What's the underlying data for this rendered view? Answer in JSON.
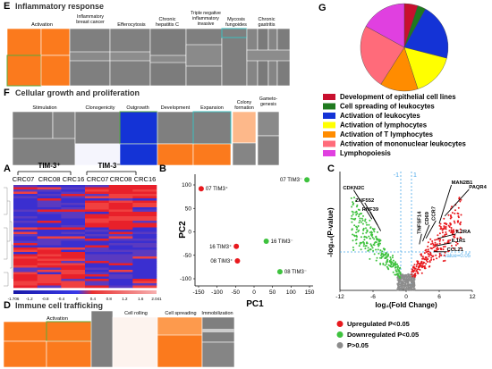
{
  "panels": {
    "E": {
      "letter": "E",
      "title": "Inflammatory response",
      "headers": [
        "Activation",
        "Inflammatory breast cancer",
        "Efferocytosis",
        "Chronic hepatitis C",
        "Triple negative inflammatory invasive",
        "Mycosis fungoides",
        "Chronic gastritis"
      ]
    },
    "F": {
      "letter": "F",
      "title": "Cellular growth and proliferation",
      "headers": [
        "Stimulation",
        "Clonogenicity",
        "Outgrowth",
        "Development",
        "Expansion",
        "Colony formation",
        "Gameto- genesis"
      ]
    },
    "A": {
      "letter": "A",
      "group_labels": [
        "TIM-3⁺",
        "TIM-3⁻"
      ],
      "column_labels": [
        "CRC07",
        "CRC08",
        "CRC16",
        "CRC07",
        "CRC08",
        "CRC16"
      ],
      "colorbar_ticks": [
        "-1.706",
        "-1.2",
        "-0.8",
        "-0.4",
        "0",
        "0.4",
        "0.8",
        "1.2",
        "1.6",
        "2.041"
      ]
    },
    "B": {
      "letter": "B",
      "xlabel": "PC1",
      "ylabel": "PC2"
    },
    "C": {
      "letter": "C",
      "xlabel": "log₂(Fold Change)",
      "ylabel": "-log₁₀(P-value)",
      "threshold_label": "P-value=0.05",
      "vline_labels": [
        "-1",
        "1"
      ],
      "legend": [
        {
          "label": "Upregulated P<0.05",
          "color": "#e8191e"
        },
        {
          "label": "Downregulated P<0.05",
          "color": "#3ec23e"
        },
        {
          "label": "P>0.05",
          "color": "#8c8c8c"
        }
      ]
    },
    "D": {
      "letter": "D",
      "title": "Immune cell trafficking",
      "headers": [
        "Activation",
        "Cell rolling",
        "Cell spreading",
        "Immobilization"
      ]
    },
    "G": {
      "letter": "G"
    }
  },
  "legend_G": [
    {
      "label": "Development of epithelial cell lines",
      "color": "#c8102e"
    },
    {
      "label": "Cell spreading of leukocytes",
      "color": "#1f7a1f"
    },
    {
      "label": "Activation of leukocytes",
      "color": "#1433d6"
    },
    {
      "label": "Activation of lymphocytes",
      "color": "#ffff00"
    },
    {
      "label": "Activation of T lymphocytes",
      "color": "#ff8c00"
    },
    {
      "label": "Activation of mononuclear leukocytes",
      "color": "#ff6b7a"
    },
    {
      "label": "Lymphopoiesis",
      "color": "#e040e0"
    }
  ],
  "chart_data": [
    {
      "type": "scatter",
      "panel": "B",
      "xlabel": "PC1",
      "ylabel": "PC2",
      "xlim": [
        -150,
        150
      ],
      "ylim": [
        -100,
        100
      ],
      "xticks": [
        "-150",
        "-100",
        "-50",
        "0",
        "50",
        "100",
        "150"
      ],
      "yticks": [
        "100",
        "50",
        "0",
        "-50",
        "-100"
      ],
      "points": [
        {
          "label": "07 TIM3⁺",
          "x": -143,
          "y": 92,
          "color": "#e8191e"
        },
        {
          "label": "16 TIM3⁺",
          "x": -48,
          "y": -31,
          "color": "#e8191e"
        },
        {
          "label": "08 TIM3⁺",
          "x": -45,
          "y": -62,
          "color": "#e8191e"
        },
        {
          "label": "07 TIM3⁻",
          "x": 143,
          "y": 111,
          "color": "#3ec23e"
        },
        {
          "label": "16 TIM3⁻",
          "x": 33,
          "y": -20,
          "color": "#3ec23e"
        },
        {
          "label": "08 TIM3⁻",
          "x": 70,
          "y": -85,
          "color": "#3ec23e"
        }
      ]
    },
    {
      "type": "scatter",
      "panel": "C",
      "xlabel": "log₂(Fold Change)",
      "ylabel": "-log₁₀(P-value)",
      "xlim": [
        -12,
        12
      ],
      "xticks": [
        "-12",
        "-6",
        "0",
        "6",
        "12"
      ],
      "annotations": [
        {
          "label": "CDKN2C",
          "x": -9.5,
          "y": 13.5
        },
        {
          "label": "ZNF552",
          "x": -7.5,
          "y": 11.8
        },
        {
          "label": "RNF39",
          "x": -6.5,
          "y": 10.6
        },
        {
          "label": "TNFSF14",
          "x": 2.8,
          "y": 7.6
        },
        {
          "label": "CD69",
          "x": 4.2,
          "y": 8.8
        },
        {
          "label": "CCR7",
          "x": 5.4,
          "y": 9.4
        },
        {
          "label": "MAN2B1",
          "x": 8.2,
          "y": 14.2
        },
        {
          "label": "PAQR4",
          "x": 11.4,
          "y": 13.6
        },
        {
          "label": "IL2RA",
          "x": 9.0,
          "y": 7.6
        },
        {
          "label": "IL1R1",
          "x": 8.2,
          "y": 6.4
        },
        {
          "label": "CCL21",
          "x": 7.4,
          "y": 5.2
        }
      ]
    },
    {
      "type": "pie",
      "panel": "G",
      "labels": [
        "Development of epithelial cell lines",
        "Cell spreading of leukocytes",
        "Activation of leukocytes",
        "Activation of lymphocytes",
        "Activation of T lymphocytes",
        "Activation of mononuclear leukocytes",
        "Lymphopoiesis"
      ],
      "values": [
        5,
        3,
        21,
        16,
        14,
        24,
        17
      ]
    },
    {
      "type": "heatmap",
      "panel": "A",
      "colorbar_range": [
        -1.706,
        2.041
      ]
    }
  ]
}
